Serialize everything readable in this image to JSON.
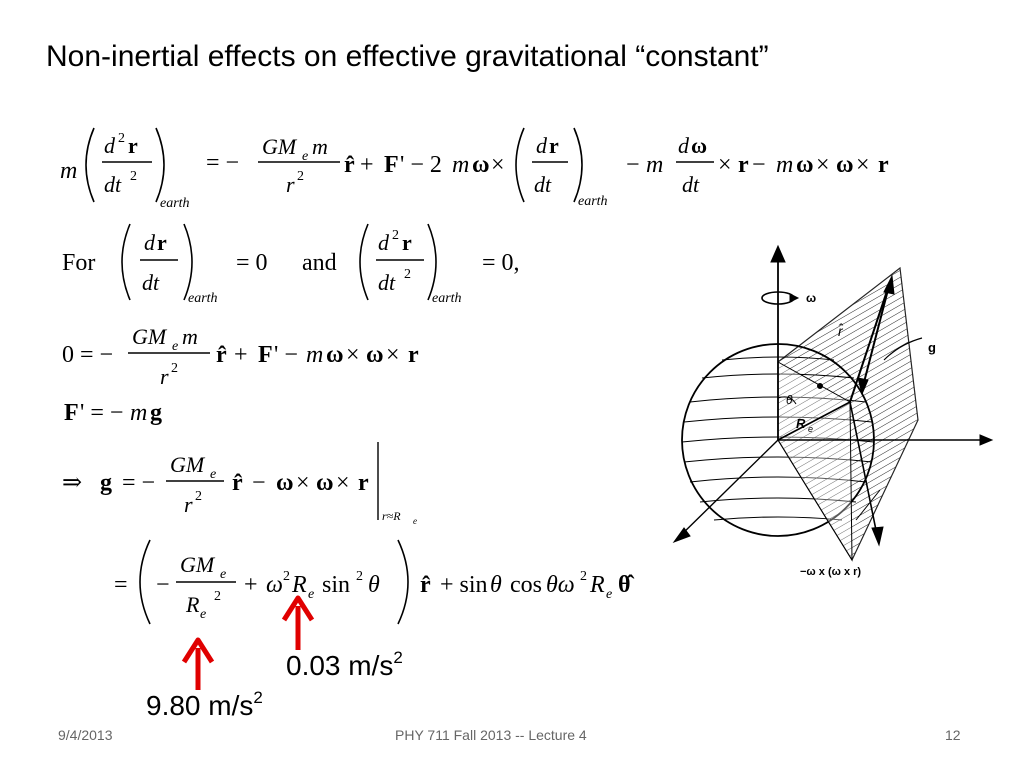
{
  "title": "Non-inertial effects on effective gravitational “constant”",
  "equations": {
    "eq1": "m (d²r/dt²)earth = − (GMe m / r²) r̂ + F' − 2mω × (dr/dt)earth − m (dω/dt) × r − mω × ω × r",
    "eq2": "For (dr/dt)earth = 0 and (d²r/dt²)earth = 0,",
    "eq3": "0 = − (GMe m / r²) r̂ + F' − mω × ω × r",
    "eq4": "F' = −mg",
    "eq5": "⇒ g = − (GMe / r²) r̂ − ω × ω × r |r≈Re",
    "eq6": "= (− GMe/Re² + ω²Re sin²θ) r̂ + sinθ cosθ ω²Re θ̂"
  },
  "math_text": {
    "for": "For",
    "and": "and",
    "earth": "earth",
    "subscript_r_approx": "r≈R"
  },
  "figure": {
    "label_omega": "ω",
    "label_rhat": "r̂",
    "label_g": "g",
    "label_theta": "θ",
    "label_Re": "R",
    "label_Re_sub": "e",
    "label_centrifugal": "−ω x (ω x r)"
  },
  "annotations": {
    "small_value": "0.03 m/s",
    "small_value_exp": "2",
    "large_value": "9.80 m/s",
    "large_value_exp": "2",
    "arrow_color": "#e00000"
  },
  "footer": {
    "date": "9/4/2013",
    "course": "PHY 711  Fall 2013 -- Lecture 4",
    "page": "12"
  }
}
